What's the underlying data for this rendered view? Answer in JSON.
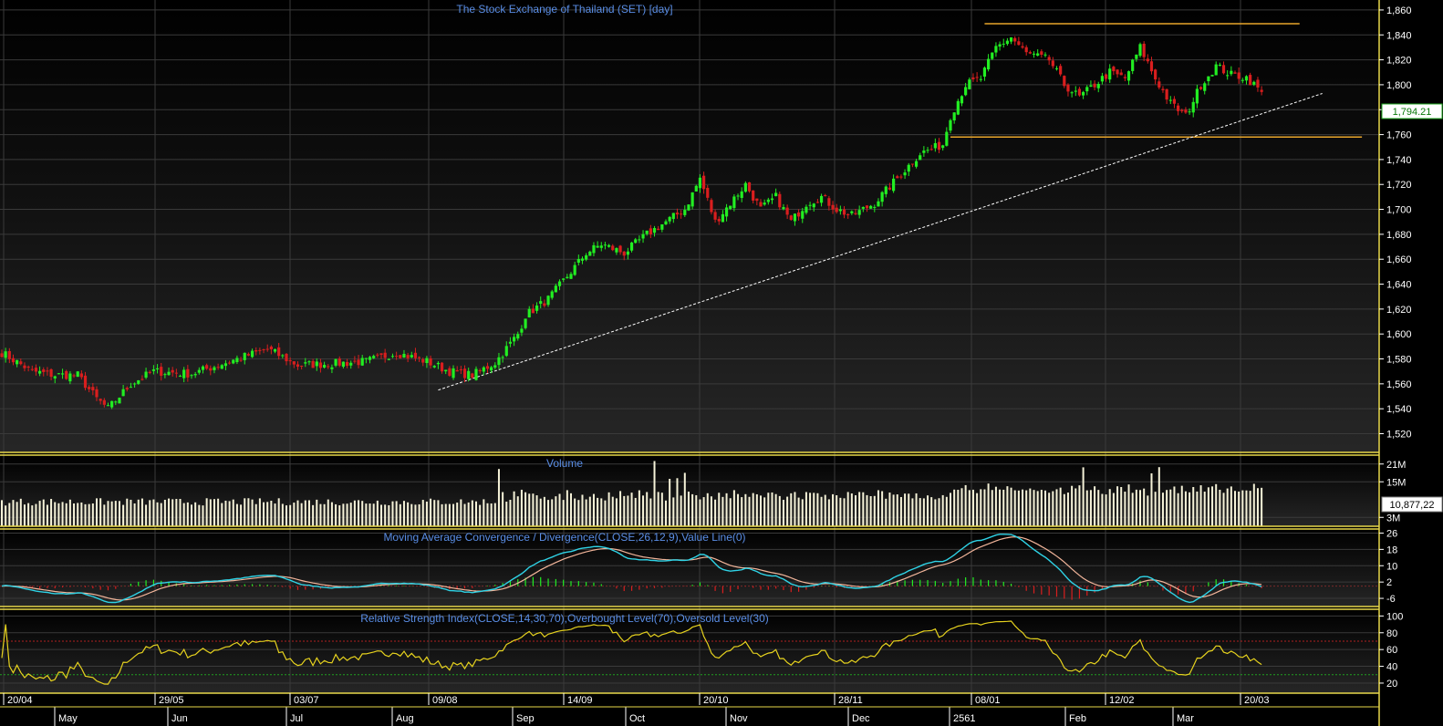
{
  "colors": {
    "up": "#22ee22",
    "down": "#d91e1e",
    "volume": "#f5f2d8",
    "frame": "#e8d84a",
    "grid": "#3a3a3a",
    "title": "#5a8ee6",
    "macd_line": "#2fd3e6",
    "macd_signal": "#f2b59a",
    "rsi": "#e6d21e",
    "rsi_ob": "#b02020",
    "rsi_os": "#20a020",
    "support": "#e8a52a",
    "trend": "#ffffff"
  },
  "chart_data": [
    {
      "type": "candlestick",
      "title": "The Stock Exchange of Thailand (SET) [day]",
      "yticks": [
        "1,860",
        "1,840",
        "1,820",
        "1,800",
        "1,780",
        "1,760",
        "1,740",
        "1,720",
        "1,700",
        "1,680",
        "1,660",
        "1,640",
        "1,620",
        "1,600",
        "1,580",
        "1,560",
        "1,540",
        "1,520"
      ],
      "ylim": [
        1505,
        1868
      ],
      "last_value_label": "1,794.21",
      "anchor_closes": [
        [
          0,
          1585
        ],
        [
          8,
          1570
        ],
        [
          14,
          1567
        ],
        [
          20,
          1567
        ],
        [
          25,
          1548
        ],
        [
          28,
          1540
        ],
        [
          34,
          1560
        ],
        [
          40,
          1570
        ],
        [
          50,
          1568
        ],
        [
          60,
          1578
        ],
        [
          70,
          1588
        ],
        [
          78,
          1575
        ],
        [
          86,
          1576
        ],
        [
          96,
          1578
        ],
        [
          104,
          1585
        ],
        [
          112,
          1578
        ],
        [
          118,
          1570
        ],
        [
          124,
          1567
        ],
        [
          130,
          1577
        ],
        [
          136,
          1600
        ],
        [
          138,
          1615
        ],
        [
          144,
          1628
        ],
        [
          150,
          1650
        ],
        [
          154,
          1665
        ],
        [
          158,
          1672
        ],
        [
          164,
          1665
        ],
        [
          170,
          1680
        ],
        [
          176,
          1692
        ],
        [
          180,
          1700
        ],
        [
          184,
          1725
        ],
        [
          188,
          1690
        ],
        [
          192,
          1705
        ],
        [
          196,
          1720
        ],
        [
          200,
          1700
        ],
        [
          204,
          1710
        ],
        [
          208,
          1690
        ],
        [
          212,
          1705
        ],
        [
          216,
          1710
        ],
        [
          220,
          1700
        ],
        [
          224,
          1695
        ],
        [
          230,
          1705
        ],
        [
          236,
          1725
        ],
        [
          242,
          1745
        ],
        [
          248,
          1752
        ],
        [
          250,
          1775
        ],
        [
          254,
          1800
        ],
        [
          258,
          1805
        ],
        [
          262,
          1830
        ],
        [
          266,
          1838
        ],
        [
          270,
          1825
        ],
        [
          276,
          1820
        ],
        [
          280,
          1800
        ],
        [
          284,
          1790
        ],
        [
          288,
          1800
        ],
        [
          292,
          1810
        ],
        [
          296,
          1805
        ],
        [
          300,
          1830
        ],
        [
          304,
          1805
        ],
        [
          308,
          1785
        ],
        [
          312,
          1775
        ],
        [
          316,
          1800
        ],
        [
          320,
          1815
        ],
        [
          324,
          1808
        ],
        [
          328,
          1806
        ],
        [
          332,
          1794.21
        ]
      ],
      "support_line": {
        "level": 1758,
        "from_bar": 250,
        "to_bar": 332
      },
      "resistance_line": {
        "level": 1849,
        "from_bar": 259,
        "to_bar": 342
      },
      "trend_line": {
        "from": [
          115,
          1555
        ],
        "to": [
          348,
          1793
        ]
      }
    },
    {
      "type": "bar",
      "title": "Volume",
      "yticks": [
        "21M",
        "15M",
        "3M"
      ],
      "ylim": [
        0,
        24
      ],
      "unit": "M",
      "last_value_label": "10,877,22"
    },
    {
      "type": "line",
      "title": "Moving Average Convergence / Divergence(CLOSE,26,12,9),Value Line(0)",
      "yticks": [
        "26",
        "18",
        "10",
        "2",
        "-6"
      ],
      "ylim": [
        -10,
        28
      ]
    },
    {
      "type": "line",
      "title": "Relative Strength Index(CLOSE,14,30,70),Overbought Level(70),Oversold Level(30)",
      "yticks": [
        "100",
        "80",
        "60",
        "40",
        "20"
      ],
      "ylim": [
        8,
        108
      ],
      "overbought": 70,
      "oversold": 30
    }
  ],
  "xaxis": {
    "top": [
      "20/04",
      "29/05",
      "03/07",
      "09/08",
      "14/09",
      "20/10",
      "28/11",
      "08/01",
      "12/02",
      "20/03"
    ],
    "bottom": [
      "May",
      "Jun",
      "Jul",
      "Aug",
      "Sep",
      "Oct",
      "Nov",
      "Dec",
      "2561",
      "Feb",
      "Mar"
    ]
  }
}
